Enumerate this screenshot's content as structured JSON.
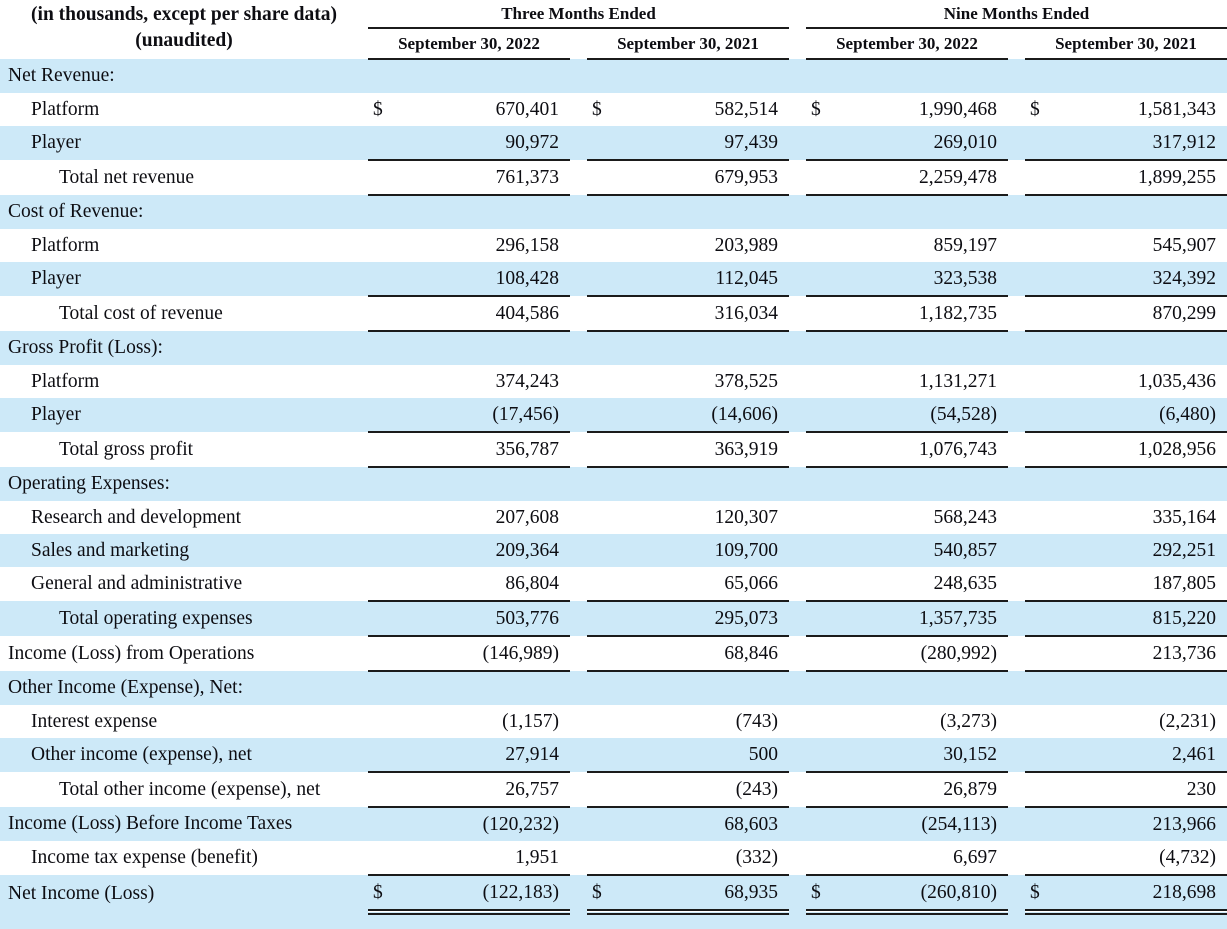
{
  "colors": {
    "row_highlight_blue": "#cde9f8",
    "rule_black": "#1b1b1b",
    "text": "#0d0d12",
    "background": "#ffffff"
  },
  "table": {
    "headnote_line1": "(in thousands, except per share data)",
    "headnote_line2": "(unaudited)",
    "currency_symbol": "$",
    "col_groups": [
      {
        "label": "Three Months Ended",
        "periods": [
          "September 30, 2022",
          "September 30, 2021"
        ]
      },
      {
        "label": "Nine Months Ended",
        "periods": [
          "September 30, 2022",
          "September 30, 2021"
        ]
      }
    ],
    "rows": [
      {
        "label": "Net Revenue:",
        "indent": 0,
        "dollar": false,
        "bg": "blue",
        "border_bottom": "none",
        "values": [
          "",
          "",
          "",
          ""
        ]
      },
      {
        "label": "Platform",
        "indent": 1,
        "dollar": true,
        "bg": "white",
        "border_bottom": "none",
        "values": [
          "670,401",
          "582,514",
          "1,990,468",
          "1,581,343"
        ]
      },
      {
        "label": "Player",
        "indent": 1,
        "dollar": false,
        "bg": "blue",
        "border_bottom": "single",
        "values": [
          "90,972",
          "97,439",
          "269,010",
          "317,912"
        ]
      },
      {
        "label": "Total net revenue",
        "indent": 2,
        "dollar": false,
        "bg": "white",
        "border_bottom": "single",
        "values": [
          "761,373",
          "679,953",
          "2,259,478",
          "1,899,255"
        ]
      },
      {
        "label": "Cost of Revenue:",
        "indent": 0,
        "dollar": false,
        "bg": "blue",
        "border_bottom": "none",
        "values": [
          "",
          "",
          "",
          ""
        ]
      },
      {
        "label": "Platform",
        "indent": 1,
        "dollar": false,
        "bg": "white",
        "border_bottom": "none",
        "values": [
          "296,158",
          "203,989",
          "859,197",
          "545,907"
        ]
      },
      {
        "label": "Player",
        "indent": 1,
        "dollar": false,
        "bg": "blue",
        "border_bottom": "single",
        "values": [
          "108,428",
          "112,045",
          "323,538",
          "324,392"
        ]
      },
      {
        "label": "Total cost of revenue",
        "indent": 2,
        "dollar": false,
        "bg": "white",
        "border_bottom": "single",
        "values": [
          "404,586",
          "316,034",
          "1,182,735",
          "870,299"
        ]
      },
      {
        "label": "Gross Profit (Loss):",
        "indent": 0,
        "dollar": false,
        "bg": "blue",
        "border_bottom": "none",
        "values": [
          "",
          "",
          "",
          ""
        ]
      },
      {
        "label": "Platform",
        "indent": 1,
        "dollar": false,
        "bg": "white",
        "border_bottom": "none",
        "values": [
          "374,243",
          "378,525",
          "1,131,271",
          "1,035,436"
        ]
      },
      {
        "label": "Player",
        "indent": 1,
        "dollar": false,
        "bg": "blue",
        "border_bottom": "single",
        "values": [
          "(17,456)",
          "(14,606)",
          "(54,528)",
          "(6,480)"
        ]
      },
      {
        "label": "Total gross profit",
        "indent": 2,
        "dollar": false,
        "bg": "white",
        "border_bottom": "single",
        "values": [
          "356,787",
          "363,919",
          "1,076,743",
          "1,028,956"
        ]
      },
      {
        "label": "Operating Expenses:",
        "indent": 0,
        "dollar": false,
        "bg": "blue",
        "border_bottom": "none",
        "values": [
          "",
          "",
          "",
          ""
        ]
      },
      {
        "label": "Research and development",
        "indent": 1,
        "dollar": false,
        "bg": "white",
        "border_bottom": "none",
        "values": [
          "207,608",
          "120,307",
          "568,243",
          "335,164"
        ]
      },
      {
        "label": "Sales and marketing",
        "indent": 1,
        "dollar": false,
        "bg": "blue",
        "border_bottom": "none",
        "values": [
          "209,364",
          "109,700",
          "540,857",
          "292,251"
        ]
      },
      {
        "label": "General and administrative",
        "indent": 1,
        "dollar": false,
        "bg": "white",
        "border_bottom": "single",
        "values": [
          "86,804",
          "65,066",
          "248,635",
          "187,805"
        ]
      },
      {
        "label": "Total operating expenses",
        "indent": 2,
        "dollar": false,
        "bg": "blue",
        "border_bottom": "single",
        "values": [
          "503,776",
          "295,073",
          "1,357,735",
          "815,220"
        ]
      },
      {
        "label": "Income (Loss) from Operations",
        "indent": 0,
        "dollar": false,
        "bg": "white",
        "border_bottom": "single",
        "values": [
          "(146,989)",
          "68,846",
          "(280,992)",
          "213,736"
        ]
      },
      {
        "label": "Other Income (Expense), Net:",
        "indent": 0,
        "dollar": false,
        "bg": "blue",
        "border_bottom": "none",
        "values": [
          "",
          "",
          "",
          ""
        ]
      },
      {
        "label": "Interest expense",
        "indent": 1,
        "dollar": false,
        "bg": "white",
        "border_bottom": "none",
        "values": [
          "(1,157)",
          "(743)",
          "(3,273)",
          "(2,231)"
        ]
      },
      {
        "label": "Other income (expense), net",
        "indent": 1,
        "dollar": false,
        "bg": "blue",
        "border_bottom": "single",
        "values": [
          "27,914",
          "500",
          "30,152",
          "2,461"
        ]
      },
      {
        "label": "Total other income (expense), net",
        "indent": 2,
        "dollar": false,
        "bg": "white",
        "border_bottom": "single",
        "values": [
          "26,757",
          "(243)",
          "26,879",
          "230"
        ]
      },
      {
        "label": "Income (Loss) Before Income Taxes",
        "indent": 0,
        "dollar": false,
        "bg": "blue",
        "border_bottom": "none",
        "values": [
          "(120,232)",
          "68,603",
          "(254,113)",
          "213,966"
        ]
      },
      {
        "label": "Income tax expense (benefit)",
        "indent": 1,
        "dollar": false,
        "bg": "white",
        "border_bottom": "single",
        "values": [
          "1,951",
          "(332)",
          "6,697",
          "(4,732)"
        ]
      },
      {
        "label": "Net Income (Loss)",
        "indent": 0,
        "dollar": true,
        "bg": "blue",
        "border_bottom": "double",
        "values": [
          "(122,183)",
          "68,935",
          "(260,810)",
          "218,698"
        ]
      }
    ]
  }
}
